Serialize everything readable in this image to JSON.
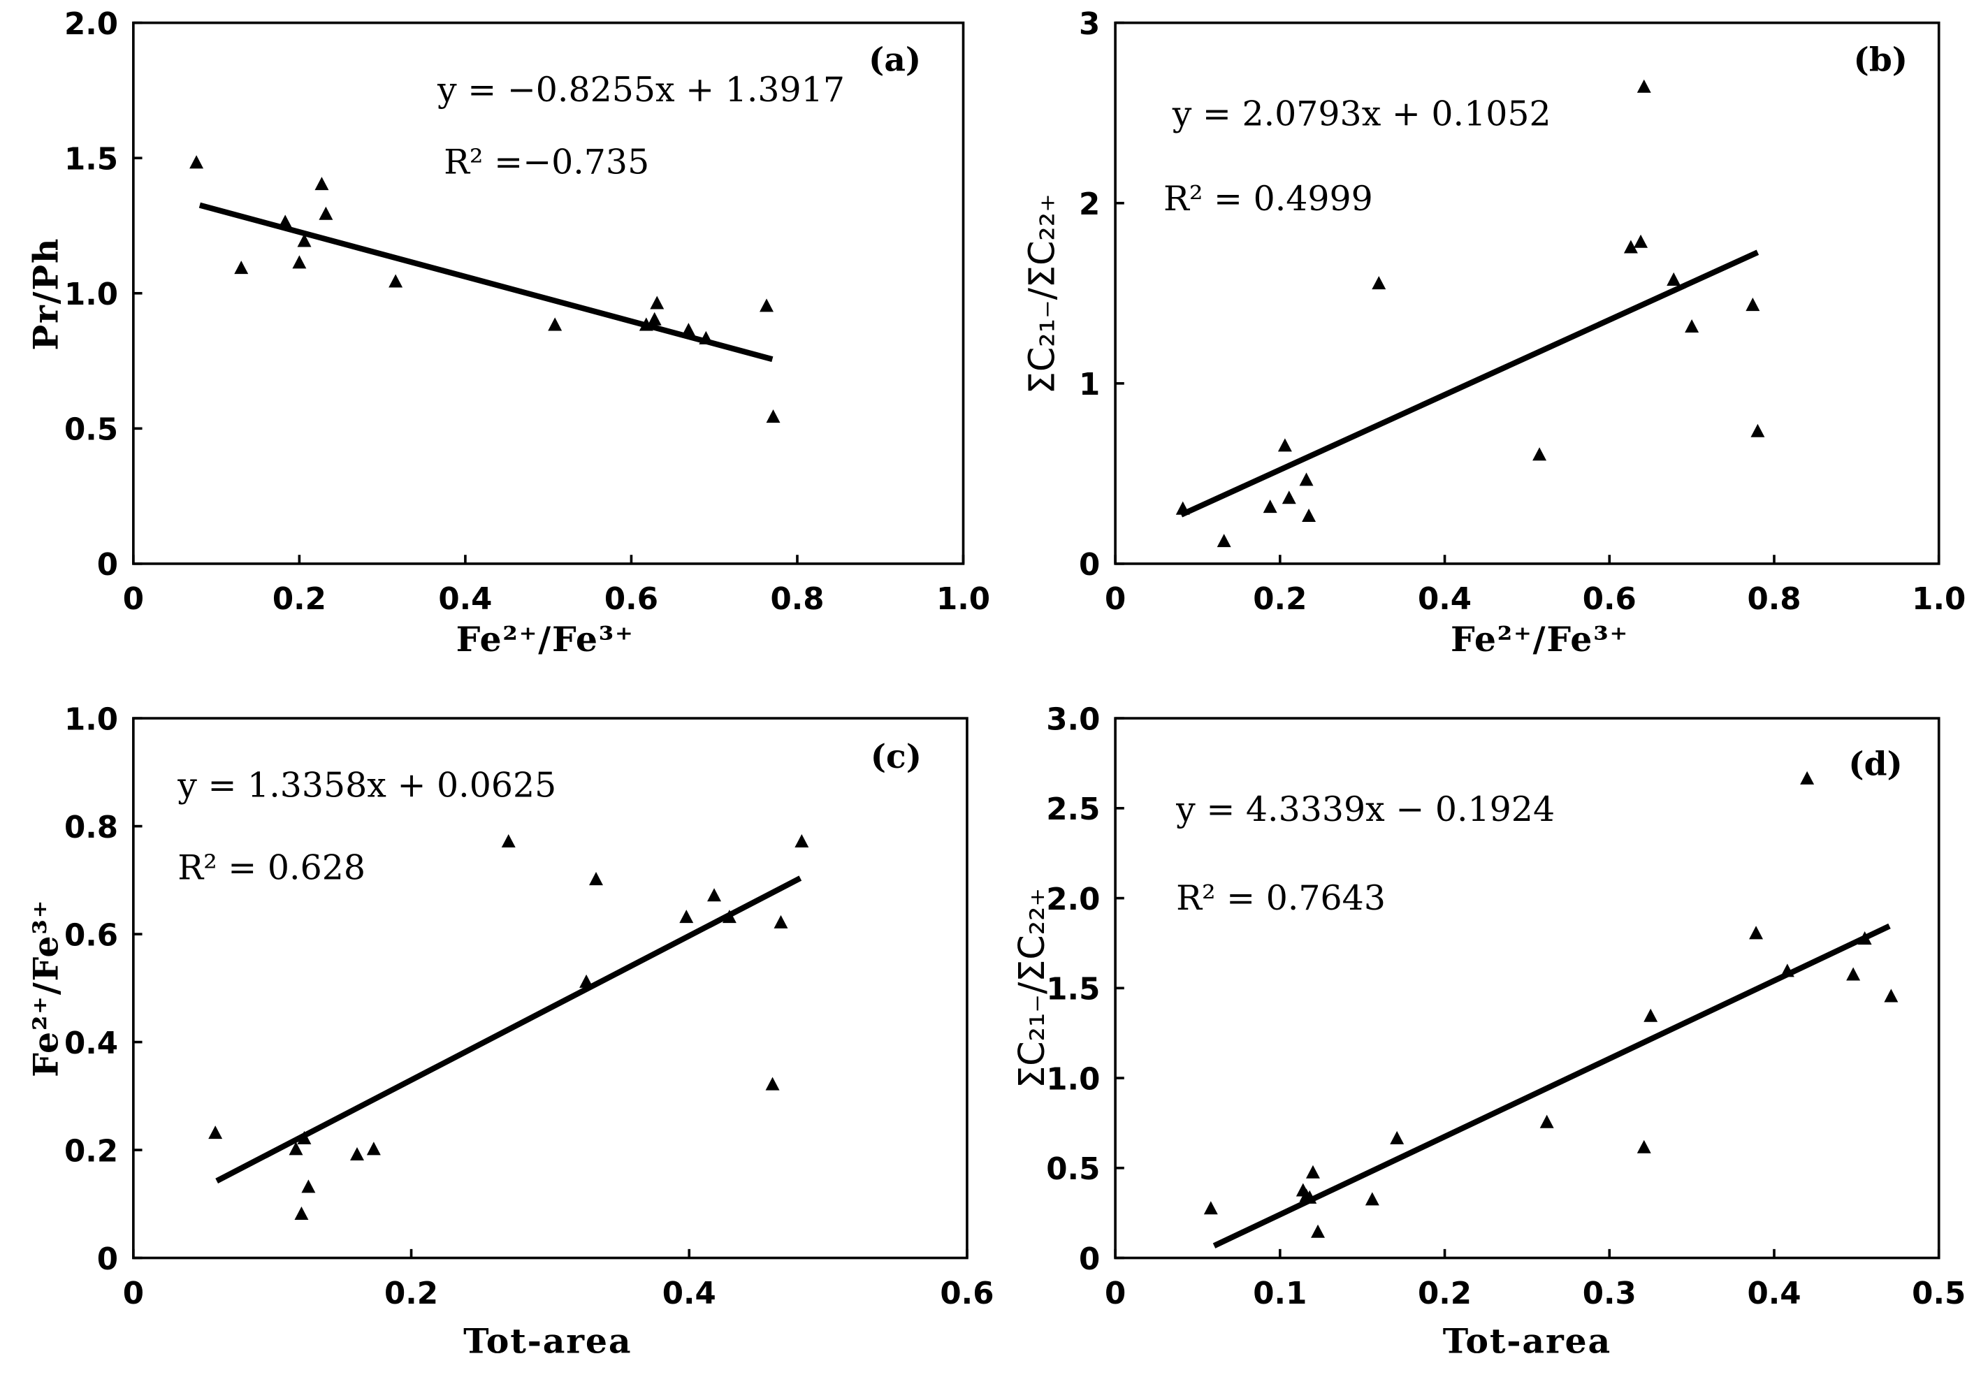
{
  "colors": {
    "ink": "#000000",
    "background": "#ffffff"
  },
  "chart_data": [
    {
      "type": "scatter",
      "marker": "triangle",
      "grid": false,
      "panel_label": "(a)",
      "xlabel": "Fe²⁺/Fe³⁺",
      "ylabel": "Pr/Ph",
      "xlim": [
        0,
        1.0
      ],
      "ylim": [
        0,
        2.0
      ],
      "xtick_labels": [
        "0",
        "0.2",
        "0.4",
        "0.6",
        "0.8",
        "1.0"
      ],
      "ytick_labels": [
        "0",
        "0.5",
        "1.0",
        "1.5",
        "2.0"
      ],
      "equation": "y = −0.8255x + 1.3917",
      "r_squared": "R² =−0.735",
      "trendline": {
        "slope": -0.8255,
        "intercept": 1.3917,
        "x_range": [
          0.08,
          0.77
        ]
      },
      "points": {
        "x": [
          0.076,
          0.13,
          0.183,
          0.2,
          0.206,
          0.227,
          0.232,
          0.316,
          0.508,
          0.618,
          0.628,
          0.631,
          0.669,
          0.69,
          0.763,
          0.771
        ],
        "y": [
          1.48,
          1.09,
          1.26,
          1.11,
          1.19,
          1.4,
          1.29,
          1.04,
          0.88,
          0.88,
          0.9,
          0.96,
          0.86,
          0.83,
          0.95,
          0.54
        ]
      }
    },
    {
      "type": "scatter",
      "marker": "triangle",
      "grid": false,
      "panel_label": "(b)",
      "xlabel": "Fe²⁺/Fe³⁺",
      "ylabel": "ΣC₂₁₋/ΣC₂₂₊",
      "xlim": [
        0,
        1.0
      ],
      "ylim": [
        0,
        3
      ],
      "xtick_labels": [
        "0",
        "0.2",
        "0.4",
        "0.6",
        "0.8",
        "1.0"
      ],
      "ytick_labels": [
        "0",
        "1",
        "2",
        "3"
      ],
      "equation": "y = 2.0793x + 0.1052",
      "r_squared": "R² = 0.4999",
      "trendline": {
        "slope": 2.0793,
        "intercept": 0.1052,
        "x_range": [
          0.08,
          0.78
        ]
      },
      "points": {
        "x": [
          0.082,
          0.132,
          0.188,
          0.206,
          0.211,
          0.232,
          0.235,
          0.32,
          0.515,
          0.626,
          0.638,
          0.642,
          0.678,
          0.7,
          0.774,
          0.78
        ],
        "y": [
          0.3,
          0.12,
          0.31,
          0.65,
          0.36,
          0.46,
          0.26,
          1.55,
          0.6,
          1.75,
          1.78,
          2.64,
          1.57,
          1.31,
          1.43,
          0.73
        ]
      }
    },
    {
      "type": "scatter",
      "marker": "triangle",
      "grid": false,
      "panel_label": "(c)",
      "xlabel": "Tot-area",
      "ylabel": "Fe²⁺/Fe³⁺",
      "xlim": [
        0,
        0.6
      ],
      "ylim": [
        0,
        1.0
      ],
      "xtick_labels": [
        "0",
        "0.2",
        "0.4",
        "0.6"
      ],
      "ytick_labels": [
        "0",
        "0.2",
        "0.4",
        "0.6",
        "0.8",
        "1.0"
      ],
      "equation": "y = 1.3358x + 0.0625",
      "r_squared": "R² = 0.628",
      "trendline": {
        "slope": 1.3358,
        "intercept": 0.0625,
        "x_range": [
          0.06,
          0.48
        ]
      },
      "points": {
        "x": [
          0.059,
          0.117,
          0.123,
          0.126,
          0.121,
          0.161,
          0.173,
          0.27,
          0.326,
          0.333,
          0.398,
          0.418,
          0.429,
          0.46,
          0.466,
          0.481
        ],
        "y": [
          0.23,
          0.2,
          0.22,
          0.13,
          0.08,
          0.19,
          0.2,
          0.77,
          0.51,
          0.7,
          0.63,
          0.67,
          0.63,
          0.32,
          0.62,
          0.77
        ]
      }
    },
    {
      "type": "scatter",
      "marker": "triangle",
      "grid": false,
      "panel_label": "(d)",
      "xlabel": "Tot-area",
      "ylabel": "ΣC₂₁₋/ΣC₂₂₊",
      "xlim": [
        0,
        0.5
      ],
      "ylim": [
        0,
        3.0
      ],
      "xtick_labels": [
        "0",
        "0.1",
        "0.2",
        "0.3",
        "0.4",
        "0.5"
      ],
      "ytick_labels": [
        "0",
        "0.5",
        "1.0",
        "1.5",
        "2.0",
        "2.5",
        "3.0"
      ],
      "equation": "y = 4.3339x − 0.1924",
      "r_squared": "R² = 0.7643",
      "trendline": {
        "slope": 4.3339,
        "intercept": -0.1924,
        "x_range": [
          0.06,
          0.47
        ]
      },
      "points": {
        "x": [
          0.058,
          0.114,
          0.116,
          0.118,
          0.12,
          0.123,
          0.156,
          0.171,
          0.262,
          0.321,
          0.325,
          0.389,
          0.408,
          0.42,
          0.448,
          0.455,
          0.471
        ],
        "y": [
          0.27,
          0.37,
          0.34,
          0.33,
          0.47,
          0.14,
          0.32,
          0.66,
          0.75,
          0.61,
          1.34,
          1.8,
          1.59,
          2.66,
          1.57,
          1.77,
          1.45
        ]
      }
    }
  ]
}
